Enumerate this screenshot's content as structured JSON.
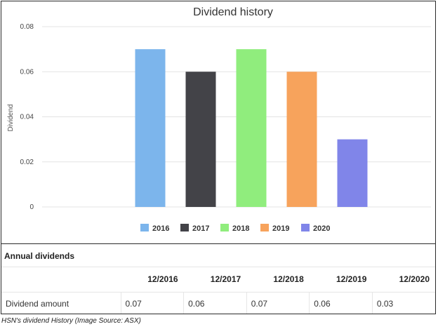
{
  "chart_data": {
    "type": "bar",
    "title": "Dividend history",
    "ylabel": "Dividend",
    "xlabel": "",
    "categories": [
      "2016",
      "2017",
      "2018",
      "2019",
      "2020"
    ],
    "values": [
      0.07,
      0.06,
      0.07,
      0.06,
      0.03
    ],
    "colors": [
      "#7cb5ec",
      "#434348",
      "#90ed7d",
      "#f7a35c",
      "#8085e9"
    ],
    "ylim": [
      0,
      0.08
    ],
    "yticks": [
      0,
      0.02,
      0.04,
      0.06,
      0.08
    ],
    "ytick_labels": [
      "0",
      "0.02",
      "0.04",
      "0.06",
      "0.08"
    ],
    "grid": true,
    "legend_position": "bottom"
  },
  "table": {
    "section_title": "Annual dividends",
    "columns": [
      "12/2016",
      "12/2017",
      "12/2018",
      "12/2019",
      "12/2020"
    ],
    "row_label": "Dividend amount",
    "row_values": [
      "0.07",
      "0.06",
      "0.07",
      "0.06",
      "0.03"
    ]
  },
  "caption": "HSN's dividend History (Image Source: ASX)"
}
